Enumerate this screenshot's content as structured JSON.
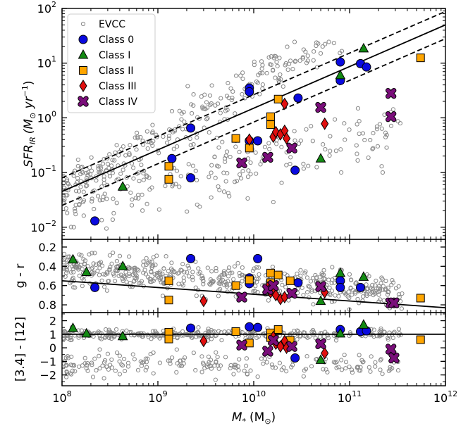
{
  "chart_data": {
    "type": "scatter",
    "xlabel_base": "M",
    "xlabel_sub": "*",
    "xlabel_unit": "(M",
    "xlabel_unit_sub": "⊙",
    "xlabel_close": ")",
    "xscale": "log",
    "xlim": [
      100000000.0,
      1000000000000.0
    ],
    "x_ticks": [
      {
        "value": 100000000.0,
        "base": "10",
        "exp": "8"
      },
      {
        "value": 1000000000.0,
        "base": "10",
        "exp": "9"
      },
      {
        "value": 10000000000.0,
        "base": "10",
        "exp": "10"
      },
      {
        "value": 100000000000.0,
        "base": "10",
        "exp": "11"
      },
      {
        "value": 1000000000000.0,
        "base": "10",
        "exp": "12"
      }
    ],
    "legend": {
      "placement": "top-left",
      "entries": [
        {
          "label": "EVCC",
          "marker": "small-open-circle",
          "color": "#888888"
        },
        {
          "label": "Class 0",
          "marker": "circle",
          "color": "#0a0adf"
        },
        {
          "label": "Class I",
          "marker": "triangle",
          "color": "#138a13"
        },
        {
          "label": "Class II",
          "marker": "square",
          "color": "#ffa500"
        },
        {
          "label": "Class III",
          "marker": "diamond",
          "color": "#e01010"
        },
        {
          "label": "Class IV",
          "marker": "x",
          "color": "#7a0e7a"
        }
      ]
    },
    "panels": [
      {
        "id": "sfr",
        "ylabel": "SFR_IR (M⊙ yr⁻¹)",
        "ylabel_main": "SFR",
        "ylabel_sub": "IR",
        "ylabel_unit": "(M",
        "ylabel_unit_sub": "⊙",
        "ylabel_unit_rest": " yr",
        "ylabel_exp": "−1",
        "ylabel_close": ")",
        "yscale": "log",
        "ylim": [
          0.006,
          100
        ],
        "y_ticks": [
          {
            "value": 0.01,
            "base": "10",
            "exp": "−2"
          },
          {
            "value": 0.1,
            "base": "10",
            "exp": "−1"
          },
          {
            "value": 1,
            "base": "10",
            "exp": "0"
          },
          {
            "value": 10,
            "base": "10",
            "exp": "1"
          },
          {
            "value": 100,
            "base": "10",
            "exp": "2"
          }
        ],
        "lines": [
          {
            "name": "relation",
            "style": "solid",
            "points": [
              [
                100000000.0,
                0.045
              ],
              [
                1000000000000.0,
                50
              ]
            ]
          },
          {
            "name": "upper",
            "style": "dashed",
            "points": [
              [
                100000000.0,
                0.08
              ],
              [
                1000000000000.0,
                88
              ]
            ]
          },
          {
            "name": "lower",
            "style": "dashed",
            "points": [
              [
                100000000.0,
                0.025
              ],
              [
                1000000000000.0,
                28
              ]
            ]
          }
        ],
        "series": [
          {
            "name": "Class 0",
            "points": [
              [
                220000000.0,
                0.013
              ],
              [
                2200000000.0,
                0.65
              ],
              [
                1400000000.0,
                0.18
              ],
              [
                2200000000.0,
                0.08
              ],
              [
                9000000000.0,
                3.5
              ],
              [
                9000000000.0,
                3.0
              ],
              [
                9000000000.0,
                0.38
              ],
              [
                11000000000.0,
                0.38
              ],
              [
                29000000000.0,
                2.3
              ],
              [
                27000000000.0,
                0.11
              ],
              [
                80000000000.0,
                10.5
              ],
              [
                80000000000.0,
                4.8
              ],
              [
                130000000000.0,
                9.8
              ],
              [
                150000000000.0,
                8.5
              ]
            ]
          },
          {
            "name": "Class I",
            "points": [
              [
                430000000.0,
                0.055
              ],
              [
                50000000000.0,
                0.18
              ],
              [
                80000000000.0,
                6.0
              ],
              [
                140000000000.0,
                18.5
              ]
            ]
          },
          {
            "name": "Class II",
            "points": [
              [
                1300000000.0,
                0.13
              ],
              [
                1300000000.0,
                0.075
              ],
              [
                6500000000.0,
                0.42
              ],
              [
                9000000000.0,
                0.28
              ],
              [
                15000000000.0,
                0.75
              ],
              [
                15000000000.0,
                1.05
              ],
              [
                18000000000.0,
                2.2
              ],
              [
                550000000000.0,
                12.5
              ]
            ]
          },
          {
            "name": "Class III",
            "points": [
              [
                9000000000.0,
                0.4
              ],
              [
                16000000000.0,
                0.45
              ],
              [
                17000000000.0,
                0.55
              ],
              [
                19000000000.0,
                0.5
              ],
              [
                21000000000.0,
                0.58
              ],
              [
                21000000000.0,
                1.8
              ],
              [
                22000000000.0,
                0.42
              ],
              [
                55000000000.0,
                0.78
              ]
            ]
          },
          {
            "name": "Class IV",
            "points": [
              [
                7500000000.0,
                0.15
              ],
              [
                14000000000.0,
                0.19
              ],
              [
                25000000000.0,
                0.28
              ],
              [
                50000000000.0,
                1.55
              ],
              [
                270000000000.0,
                2.8
              ],
              [
                270000000000.0,
                1.05
              ]
            ]
          }
        ]
      },
      {
        "id": "gr",
        "ylabel": "g - r",
        "yscale": "linear",
        "ylim": [
          0.88,
          0.12
        ],
        "y_ticks": [
          {
            "value": 0.2,
            "label": "0.2"
          },
          {
            "value": 0.4,
            "label": "0.4"
          },
          {
            "value": 0.6,
            "label": "0.6"
          },
          {
            "value": 0.8,
            "label": "0.8"
          }
        ],
        "lines": [
          {
            "name": "relation",
            "style": "solid",
            "points": [
              [
                100000000.0,
                0.55
              ],
              [
                1000000000000.0,
                0.83
              ]
            ]
          }
        ],
        "series": [
          {
            "name": "Class 0",
            "points": [
              [
                220000000.0,
                0.62
              ],
              [
                2200000000.0,
                0.32
              ],
              [
                9000000000.0,
                0.52
              ],
              [
                9000000000.0,
                0.58
              ],
              [
                11000000000.0,
                0.32
              ],
              [
                29000000000.0,
                0.57
              ],
              [
                80000000000.0,
                0.55
              ],
              [
                80000000000.0,
                0.62
              ],
              [
                130000000000.0,
                0.62
              ]
            ]
          },
          {
            "name": "Class I",
            "points": [
              [
                130000000.0,
                0.33
              ],
              [
                180000000.0,
                0.46
              ],
              [
                430000000.0,
                0.4
              ],
              [
                50000000000.0,
                0.76
              ],
              [
                80000000000.0,
                0.47
              ],
              [
                140000000000.0,
                0.51
              ]
            ]
          },
          {
            "name": "Class II",
            "points": [
              [
                1300000000.0,
                0.55
              ],
              [
                1300000000.0,
                0.75
              ],
              [
                6500000000.0,
                0.6
              ],
              [
                9000000000.0,
                0.54
              ],
              [
                15000000000.0,
                0.47
              ],
              [
                15000000000.0,
                0.57
              ],
              [
                18000000000.0,
                0.49
              ],
              [
                24000000000.0,
                0.55
              ],
              [
                550000000000.0,
                0.73
              ]
            ]
          },
          {
            "name": "Class III",
            "points": [
              [
                3000000000.0,
                0.76
              ],
              [
                14000000000.0,
                0.62
              ],
              [
                15000000000.0,
                0.67
              ],
              [
                16000000000.0,
                0.66
              ],
              [
                17000000000.0,
                0.7
              ],
              [
                19000000000.0,
                0.74
              ],
              [
                21000000000.0,
                0.72
              ],
              [
                55000000000.0,
                0.67
              ]
            ]
          },
          {
            "name": "Class IV",
            "points": [
              [
                7500000000.0,
                0.72
              ],
              [
                14000000000.0,
                0.64
              ],
              [
                16000000000.0,
                0.6
              ],
              [
                25000000000.0,
                0.68
              ],
              [
                50000000000.0,
                0.61
              ],
              [
                270000000000.0,
                0.78
              ],
              [
                290000000000.0,
                0.78
              ]
            ]
          }
        ]
      },
      {
        "id": "w1w3",
        "ylabel": "[3.4] - [12]",
        "yscale": "linear",
        "ylim": [
          -2.8,
          2.6
        ],
        "y_ticks": [
          {
            "value": -2,
            "label": "−2"
          },
          {
            "value": -1,
            "label": "−1"
          },
          {
            "value": 0,
            "label": "0"
          },
          {
            "value": 1,
            "label": "1"
          },
          {
            "value": 2,
            "label": "2"
          }
        ],
        "lines": [
          {
            "name": "threshold",
            "style": "solid",
            "points": [
              [
                100000000.0,
                1.0
              ],
              [
                1000000000000.0,
                1.0
              ]
            ]
          }
        ],
        "series": [
          {
            "name": "Class 0",
            "points": [
              [
                2200000000.0,
                1.45
              ],
              [
                9000000000.0,
                1.55
              ],
              [
                11000000000.0,
                1.5
              ],
              [
                27000000000.0,
                -0.75
              ],
              [
                80000000000.0,
                1.35
              ],
              [
                130000000000.0,
                1.2
              ],
              [
                150000000000.0,
                1.25
              ]
            ]
          },
          {
            "name": "Class I",
            "points": [
              [
                130000000.0,
                1.45
              ],
              [
                180000000.0,
                1.05
              ],
              [
                430000000.0,
                0.85
              ],
              [
                50000000000.0,
                -0.9
              ],
              [
                80000000000.0,
                1.05
              ],
              [
                140000000000.0,
                1.7
              ]
            ]
          },
          {
            "name": "Class II",
            "points": [
              [
                1300000000.0,
                1.15
              ],
              [
                1300000000.0,
                0.65
              ],
              [
                6500000000.0,
                1.2
              ],
              [
                9000000000.0,
                0.35
              ],
              [
                15000000000.0,
                1.1
              ],
              [
                15000000000.0,
                0.75
              ],
              [
                18000000000.0,
                1.35
              ],
              [
                24000000000.0,
                0.55
              ],
              [
                550000000000.0,
                0.6
              ]
            ]
          },
          {
            "name": "Class III",
            "points": [
              [
                3000000000.0,
                0.5
              ],
              [
                16000000000.0,
                0.8
              ],
              [
                17000000000.0,
                0.3
              ],
              [
                19000000000.0,
                0.1
              ],
              [
                21000000000.0,
                0.5
              ],
              [
                22000000000.0,
                0.0
              ],
              [
                55000000000.0,
                -0.4
              ]
            ]
          },
          {
            "name": "Class IV",
            "points": [
              [
                7500000000.0,
                0.2
              ],
              [
                14000000000.0,
                -0.25
              ],
              [
                16000000000.0,
                0.55
              ],
              [
                25000000000.0,
                0.1
              ],
              [
                50000000000.0,
                0.3
              ],
              [
                270000000000.0,
                -0.1
              ],
              [
                290000000000.0,
                -0.75
              ]
            ]
          }
        ]
      }
    ]
  }
}
